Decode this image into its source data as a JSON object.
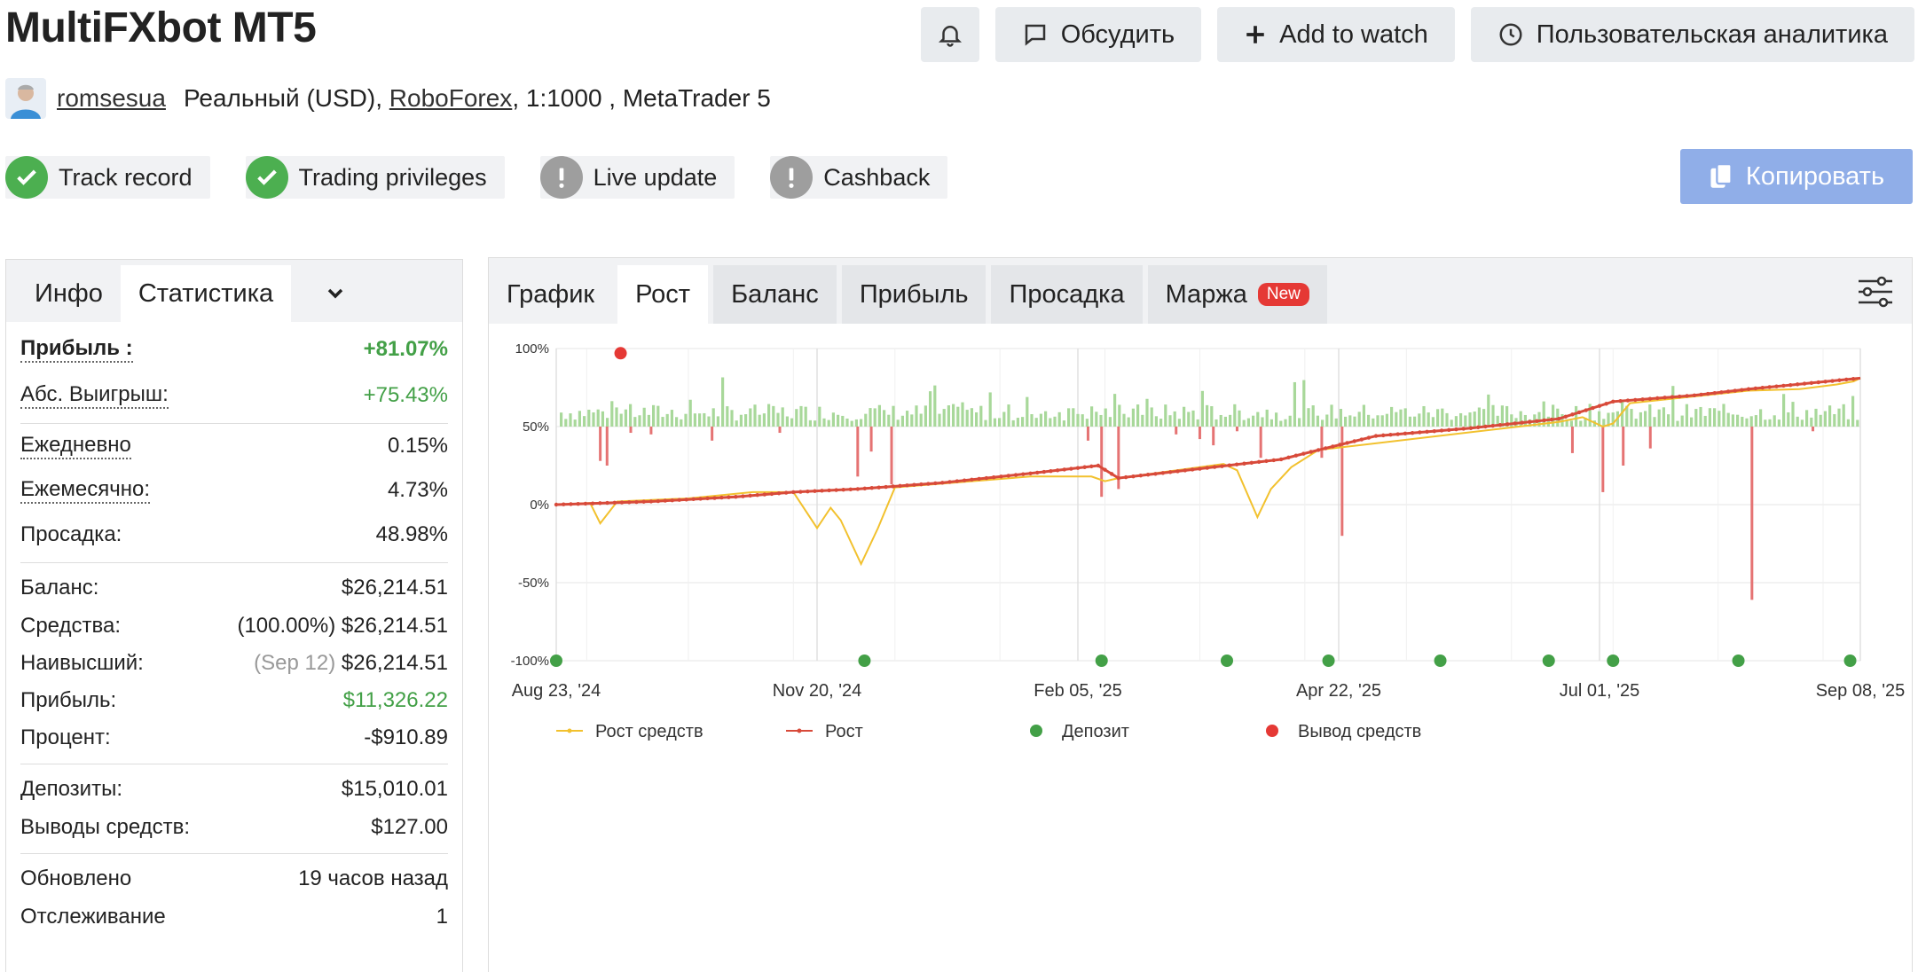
{
  "title": "MultiFXbot MT5",
  "actions": {
    "bell_icon": "bell-icon",
    "discuss": "Обсудить",
    "add_watch": "Add to watch",
    "analytics": "Пользовательская аналитика"
  },
  "account": {
    "user": "romsesua",
    "type": "Реальный (USD),",
    "broker": "RoboForex",
    "details": ", 1:1000 , MetaTrader 5"
  },
  "badges": [
    {
      "label": "Track record",
      "status": "ok"
    },
    {
      "label": "Trading privileges",
      "status": "ok"
    },
    {
      "label": "Live update",
      "status": "warn"
    },
    {
      "label": "Cashback",
      "status": "warn"
    }
  ],
  "copy_label": "Копировать",
  "left_tabs": {
    "info": "Инфо",
    "stats": "Статистика"
  },
  "stats": {
    "profit_label": "Прибыль :",
    "profit_value": "+81.07%",
    "abs_label": "Абс. Выигрыш:",
    "abs_value": "+75.43%",
    "daily_label": "Ежедневно",
    "daily_value": "0.15%",
    "monthly_label": "Ежемесячно:",
    "monthly_value": "4.73%",
    "dd_label": "Просадка:",
    "dd_value": "48.98%",
    "balance_label": "Баланс:",
    "balance_value": "$26,214.51",
    "equity_label": "Средства:",
    "equity_pct": "(100.00%)",
    "equity_value": "$26,214.51",
    "highest_label": "Наивысший:",
    "highest_date": "(Sep 12)",
    "highest_value": "$26,214.51",
    "profit2_label": "Прибыль:",
    "profit2_value": "$11,326.22",
    "interest_label": "Процент:",
    "interest_value": "-$910.89",
    "deposits_label": "Депозиты:",
    "deposits_value": "$15,010.01",
    "withdrawals_label": "Выводы средств:",
    "withdrawals_value": "$127.00",
    "updated_label": "Обновлено",
    "updated_value": "19 часов назад",
    "tracking_label": "Отслеживание",
    "tracking_value": "1"
  },
  "right_tabs": {
    "graph": "График",
    "growth": "Рост",
    "balance": "Баланс",
    "profit": "Прибыль",
    "drawdown": "Просадка",
    "margin": "Маржа",
    "new_badge": "New"
  },
  "colors": {
    "growth": "#d84a3a",
    "equity": "#f2c12e",
    "bar_pos": "#a8d89a",
    "bar_neg": "#e57373",
    "deposit": "#43a047",
    "withdrawal": "#e53935"
  },
  "chart_data": {
    "type": "line",
    "y_ticks": [
      "100%",
      "50%",
      "0%",
      "-50%",
      "-100%"
    ],
    "ylim": [
      -100,
      100
    ],
    "x_ticks": [
      "Aug 23, '24",
      "Nov 20, '24",
      "Feb 05, '25",
      "Apr 22, '25",
      "Jul 01, '25",
      "Sep 08, '25"
    ],
    "xlim": [
      "2024-08-23",
      "2025-09-12"
    ],
    "legend": [
      "Рост средств",
      "Рост",
      "Депозит",
      "Вывод средств"
    ],
    "legend_position": "bottom",
    "grid": true,
    "growth_points": [
      [
        "2024-08-23",
        0
      ],
      [
        "2024-09-20",
        2
      ],
      [
        "2024-10-15",
        5
      ],
      [
        "2024-11-01",
        8
      ],
      [
        "2024-11-20",
        10
      ],
      [
        "2024-12-15",
        14
      ],
      [
        "2025-01-10",
        20
      ],
      [
        "2025-01-30",
        25
      ],
      [
        "2025-02-05",
        17
      ],
      [
        "2025-03-01",
        23
      ],
      [
        "2025-03-25",
        29
      ],
      [
        "2025-04-05",
        35
      ],
      [
        "2025-04-22",
        44
      ],
      [
        "2025-05-20",
        49
      ],
      [
        "2025-06-15",
        55
      ],
      [
        "2025-07-01",
        66
      ],
      [
        "2025-07-25",
        70
      ],
      [
        "2025-08-10",
        74
      ],
      [
        "2025-09-12",
        81
      ]
    ],
    "equity_points": [
      [
        "2024-08-23",
        0
      ],
      [
        "2024-09-02",
        1
      ],
      [
        "2024-09-05",
        -12
      ],
      [
        "2024-09-10",
        2
      ],
      [
        "2024-10-01",
        4
      ],
      [
        "2024-10-20",
        8
      ],
      [
        "2024-11-01",
        8
      ],
      [
        "2024-11-08",
        -15
      ],
      [
        "2024-11-12",
        -2
      ],
      [
        "2024-11-15",
        -10
      ],
      [
        "2024-11-21",
        -38
      ],
      [
        "2024-11-26",
        -15
      ],
      [
        "2024-12-01",
        11
      ],
      [
        "2025-01-10",
        18
      ],
      [
        "2025-01-28",
        18
      ],
      [
        "2025-02-01",
        15
      ],
      [
        "2025-02-05",
        17
      ],
      [
        "2025-03-08",
        26
      ],
      [
        "2025-03-12",
        22
      ],
      [
        "2025-03-18",
        -8
      ],
      [
        "2025-03-22",
        10
      ],
      [
        "2025-03-28",
        24
      ],
      [
        "2025-04-05",
        35
      ],
      [
        "2025-06-15",
        53
      ],
      [
        "2025-06-22",
        56
      ],
      [
        "2025-06-28",
        50
      ],
      [
        "2025-07-01",
        52
      ],
      [
        "2025-07-06",
        65
      ],
      [
        "2025-08-10",
        73
      ],
      [
        "2025-08-25",
        74
      ],
      [
        "2025-09-05",
        77
      ],
      [
        "2025-09-10",
        79
      ],
      [
        "2025-09-12",
        81
      ]
    ],
    "deposits": [
      "2024-08-23",
      "2024-11-22",
      "2025-01-31",
      "2025-03-09",
      "2025-04-08",
      "2025-05-11",
      "2025-06-12",
      "2025-07-01",
      "2025-08-07",
      "2025-09-09"
    ],
    "withdrawals": [
      [
        "2024-09-11",
        97
      ]
    ],
    "neg_bars": [
      [
        "2024-09-05",
        -22
      ],
      [
        "2024-09-07",
        -25
      ],
      [
        "2024-09-14",
        -4
      ],
      [
        "2024-09-20",
        -5
      ],
      [
        "2024-10-08",
        -9
      ],
      [
        "2024-10-28",
        -4
      ],
      [
        "2024-11-20",
        -32
      ],
      [
        "2024-11-24",
        -16
      ],
      [
        "2024-11-30",
        -37
      ],
      [
        "2025-01-27",
        -9
      ],
      [
        "2025-01-31",
        -45
      ],
      [
        "2025-02-05",
        -40
      ],
      [
        "2025-02-22",
        -5
      ],
      [
        "2025-03-01",
        -8
      ],
      [
        "2025-03-05",
        -12
      ],
      [
        "2025-03-12",
        -3
      ],
      [
        "2025-03-19",
        -20
      ],
      [
        "2025-04-06",
        -20
      ],
      [
        "2025-04-12",
        -70
      ],
      [
        "2025-06-19",
        -17
      ],
      [
        "2025-06-28",
        -42
      ],
      [
        "2025-07-04",
        -25
      ],
      [
        "2025-07-12",
        -14
      ],
      [
        "2025-08-11",
        -111
      ],
      [
        "2025-08-29",
        -3
      ]
    ]
  }
}
